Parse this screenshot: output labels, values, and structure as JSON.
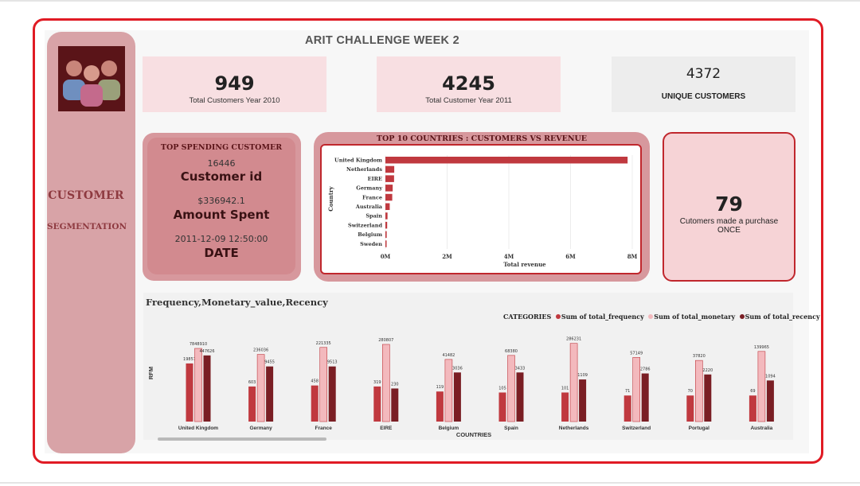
{
  "report": {
    "title": "ARIT CHALLENGE WEEK 2"
  },
  "sidebar": {
    "title": "CUSTOMER",
    "subtitle": "SEGMENTATION"
  },
  "kpis": {
    "y2010": {
      "value": "949",
      "label": "Total Customers Year 2010"
    },
    "y2011": {
      "value": "4245",
      "label": "Total Customer Year 2011"
    },
    "unique": {
      "value": "4372",
      "label": "UNIQUE CUSTOMERS"
    }
  },
  "top_spender": {
    "heading": "TOP SPENDING CUSTOMER",
    "id_value": "16446",
    "id_label": "Customer id",
    "amount_value": "$336942.1",
    "amount_label": "Amount Spent",
    "date_value": "2011-12-09 12:50:00",
    "date_label": "DATE"
  },
  "once_card": {
    "value": "79",
    "label_line1": "Cutomers made a purchase",
    "label_line2": "ONCE"
  },
  "colors": {
    "bar_red": "#c0393f",
    "frequency": "#c0393f",
    "monetary": "#f3b9bd",
    "recency": "#7a1e24",
    "border_red": "#e01b24"
  },
  "chart_data": [
    {
      "type": "bar",
      "orientation": "horizontal",
      "title": "TOP 10 COUNTRIES : CUSTOMERS VS REVENUE",
      "xlabel": "Total revenue",
      "ylabel": "Country",
      "categories": [
        "United Kingdom",
        "Netherlands",
        "EIRE",
        "Germany",
        "France",
        "Australia",
        "Spain",
        "Switzerland",
        "Belgium",
        "Sweden"
      ],
      "values": [
        7848910,
        286231,
        280807,
        236036,
        221335,
        139965,
        68380,
        57149,
        41482,
        37190
      ],
      "xlim": [
        0,
        8000000
      ],
      "xticks": [
        "0M",
        "2M",
        "4M",
        "6M",
        "8M"
      ],
      "grid": true
    },
    {
      "type": "bar",
      "title": "Frequency,Monetary_value,Recency",
      "xlabel": "COUNTRIES",
      "ylabel": "RFM",
      "legend_title": "CATEGORIES",
      "legend_position": "top-right",
      "categories": [
        "United Kingdom",
        "Germany",
        "France",
        "EIRE",
        "Belgium",
        "Spain",
        "Netherlands",
        "Switzerland",
        "Portugal",
        "Australia"
      ],
      "series": [
        {
          "name": "Sum of total_frequency",
          "values": [
            19857,
            603,
            458,
            319,
            119,
            105,
            101,
            71,
            70,
            69
          ]
        },
        {
          "name": "Sum of total_monetary",
          "values": [
            7848910,
            236036,
            221335,
            280807,
            41482,
            68380,
            286231,
            57149,
            37820,
            139965
          ]
        },
        {
          "name": "Sum of total_recency",
          "values": [
            447626,
            9455,
            9513,
            230,
            3036,
            3433,
            1109,
            2786,
            2220,
            1094
          ]
        }
      ],
      "display_heights": [
        [
          0.58,
          0.73,
          0.66
        ],
        [
          0.35,
          0.67,
          0.55
        ],
        [
          0.36,
          0.74,
          0.55
        ],
        [
          0.35,
          0.77,
          0.33
        ],
        [
          0.3,
          0.62,
          0.49
        ],
        [
          0.29,
          0.66,
          0.49
        ],
        [
          0.29,
          0.78,
          0.42
        ],
        [
          0.26,
          0.64,
          0.48
        ],
        [
          0.26,
          0.61,
          0.47
        ],
        [
          0.26,
          0.7,
          0.41
        ]
      ]
    }
  ]
}
